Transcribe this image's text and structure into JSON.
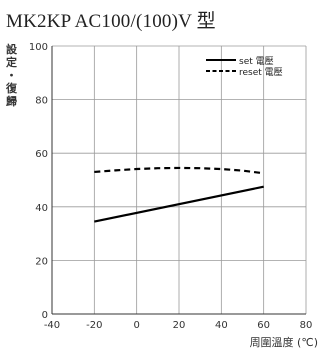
{
  "chart_data": {
    "type": "line",
    "title": "MK2KP AC100/(100)V 型",
    "ylabel": "設定・復歸",
    "xlabel": "周圍溫度 (℃)",
    "xlim": [
      -40,
      80
    ],
    "ylim": [
      0,
      100
    ],
    "x_ticks": [
      -40,
      -20,
      0,
      20,
      40,
      60,
      80
    ],
    "y_ticks": [
      0,
      20,
      40,
      60,
      80,
      100
    ],
    "grid": true,
    "legend_position": "top-right",
    "series": [
      {
        "name": "set 電壓",
        "style": "solid",
        "color": "#000000",
        "x": [
          -20,
          60
        ],
        "y": [
          34.5,
          47.5
        ]
      },
      {
        "name": "reset 電壓",
        "style": "dashed",
        "color": "#000000",
        "x": [
          -20,
          -10,
          0,
          10,
          20,
          30,
          40,
          50,
          60
        ],
        "y": [
          53,
          53.6,
          54.1,
          54.4,
          54.5,
          54.4,
          54.1,
          53.5,
          52.5
        ]
      }
    ]
  }
}
